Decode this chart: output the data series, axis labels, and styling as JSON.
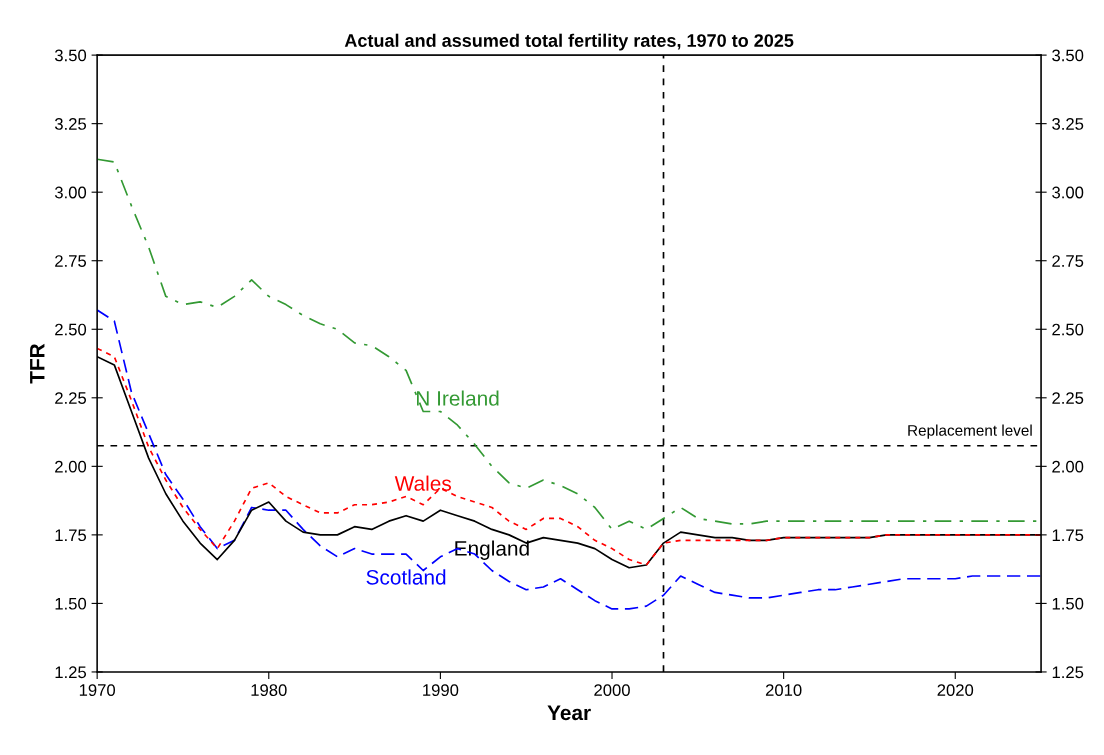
{
  "chart_data": {
    "type": "line",
    "title": "Actual and assumed total fertility rates, 1970 to 2025",
    "xlabel": "Year",
    "ylabel": "TFR",
    "x": [
      1970,
      1971,
      1972,
      1973,
      1974,
      1975,
      1976,
      1977,
      1978,
      1979,
      1980,
      1981,
      1982,
      1983,
      1984,
      1985,
      1986,
      1987,
      1988,
      1989,
      1990,
      1991,
      1992,
      1993,
      1994,
      1995,
      1996,
      1997,
      1998,
      1999,
      2000,
      2001,
      2002,
      2003,
      2004,
      2005,
      2006,
      2007,
      2008,
      2009,
      2010,
      2011,
      2012,
      2013,
      2014,
      2015,
      2016,
      2017,
      2018,
      2019,
      2020,
      2021,
      2022,
      2023,
      2024,
      2025
    ],
    "series": [
      {
        "name": "N Ireland",
        "color": "#339933",
        "line_style": "dashdot",
        "values": [
          3.12,
          3.11,
          2.95,
          2.8,
          2.62,
          2.59,
          2.6,
          2.58,
          2.62,
          2.68,
          2.62,
          2.59,
          2.55,
          2.52,
          2.5,
          2.45,
          2.44,
          2.4,
          2.35,
          2.2,
          2.2,
          2.15,
          2.08,
          2.0,
          1.94,
          1.92,
          1.95,
          1.93,
          1.9,
          1.85,
          1.77,
          1.8,
          1.77,
          1.81,
          1.85,
          1.81,
          1.8,
          1.79,
          1.79,
          1.8,
          1.8,
          1.8,
          1.8,
          1.8,
          1.8,
          1.8,
          1.8,
          1.8,
          1.8,
          1.8,
          1.8,
          1.8,
          1.8,
          1.8,
          1.8,
          1.8
        ]
      },
      {
        "name": "Wales",
        "color": "#ff0000",
        "line_style": "dotted",
        "values": [
          2.43,
          2.4,
          2.24,
          2.07,
          1.95,
          1.85,
          1.77,
          1.7,
          1.8,
          1.92,
          1.94,
          1.89,
          1.86,
          1.83,
          1.83,
          1.86,
          1.86,
          1.87,
          1.89,
          1.86,
          1.92,
          1.89,
          1.87,
          1.85,
          1.8,
          1.77,
          1.81,
          1.81,
          1.78,
          1.73,
          1.7,
          1.66,
          1.64,
          1.72,
          1.73,
          1.73,
          1.73,
          1.73,
          1.73,
          1.73,
          1.74,
          1.74,
          1.74,
          1.74,
          1.74,
          1.74,
          1.75,
          1.75,
          1.75,
          1.75,
          1.75,
          1.75,
          1.75,
          1.75,
          1.75,
          1.75
        ]
      },
      {
        "name": "England",
        "color": "#000000",
        "line_style": "solid",
        "values": [
          2.4,
          2.37,
          2.2,
          2.03,
          1.9,
          1.8,
          1.72,
          1.66,
          1.73,
          1.84,
          1.87,
          1.8,
          1.76,
          1.75,
          1.75,
          1.78,
          1.77,
          1.8,
          1.82,
          1.8,
          1.84,
          1.82,
          1.8,
          1.77,
          1.75,
          1.72,
          1.74,
          1.73,
          1.72,
          1.7,
          1.66,
          1.63,
          1.64,
          1.72,
          1.76,
          1.75,
          1.74,
          1.74,
          1.73,
          1.73,
          1.74,
          1.74,
          1.74,
          1.74,
          1.74,
          1.74,
          1.75,
          1.75,
          1.75,
          1.75,
          1.75,
          1.75,
          1.75,
          1.75,
          1.75,
          1.75
        ]
      },
      {
        "name": "Scotland",
        "color": "#0000ff",
        "line_style": "dashed",
        "values": [
          2.57,
          2.53,
          2.27,
          2.12,
          1.97,
          1.88,
          1.78,
          1.7,
          1.73,
          1.85,
          1.84,
          1.84,
          1.77,
          1.71,
          1.67,
          1.7,
          1.68,
          1.68,
          1.68,
          1.62,
          1.67,
          1.7,
          1.68,
          1.62,
          1.58,
          1.55,
          1.56,
          1.59,
          1.55,
          1.51,
          1.48,
          1.48,
          1.49,
          1.53,
          1.6,
          1.57,
          1.54,
          1.53,
          1.52,
          1.52,
          1.53,
          1.54,
          1.55,
          1.55,
          1.56,
          1.57,
          1.58,
          1.59,
          1.59,
          1.59,
          1.59,
          1.6,
          1.6,
          1.6,
          1.6,
          1.6
        ]
      }
    ],
    "xlim": [
      1970,
      2025
    ],
    "xticks": [
      1970,
      1980,
      1990,
      2000,
      2010,
      2020
    ],
    "ylim": [
      1.25,
      3.5
    ],
    "yticks": [
      {
        "value": 1.25,
        "label": "1.25"
      },
      {
        "value": 1.5,
        "label": "1.50"
      },
      {
        "value": 1.75,
        "label": "1.75"
      },
      {
        "value": 2.0,
        "label": "2.00"
      },
      {
        "value": 2.25,
        "label": "2.25"
      },
      {
        "value": 2.5,
        "label": "2.50"
      },
      {
        "value": 2.75,
        "label": "2.75"
      },
      {
        "value": 3.0,
        "label": "3.00"
      },
      {
        "value": 3.25,
        "label": "3.25"
      },
      {
        "value": 3.5,
        "label": "3.50"
      }
    ],
    "y2lim": [
      1.25,
      3.5
    ],
    "y2ticks": [
      {
        "value": 1.25,
        "label": "1.25"
      },
      {
        "value": 1.5,
        "label": "1.50"
      },
      {
        "value": 1.75,
        "label": "1.75"
      },
      {
        "value": 2.0,
        "label": "2.00"
      },
      {
        "value": 2.25,
        "label": "2.25"
      },
      {
        "value": 2.5,
        "label": "2.50"
      },
      {
        "value": 2.75,
        "label": "2.75"
      },
      {
        "value": 3.0,
        "label": "3.00"
      },
      {
        "value": 3.25,
        "label": "3.25"
      },
      {
        "value": 3.5,
        "label": "3.50"
      }
    ],
    "ref_lines": [
      {
        "axis": "y",
        "value": 2.075,
        "label": "Replacement level",
        "color": "#000000",
        "line_style": "dashed"
      },
      {
        "axis": "x",
        "value": 2003,
        "label": null,
        "color": "#000000",
        "line_style": "dashed"
      }
    ],
    "grid": false,
    "legend": false,
    "marker": "none"
  }
}
